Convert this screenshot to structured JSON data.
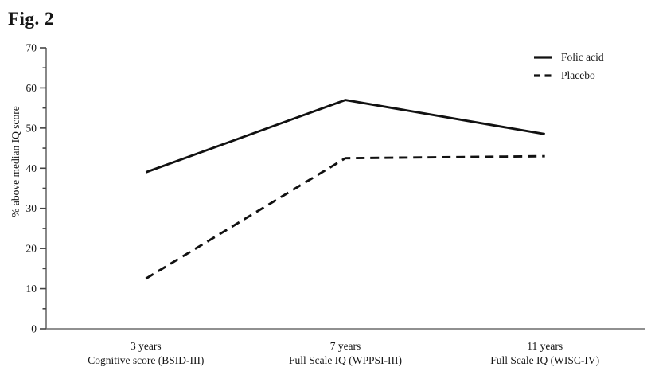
{
  "figure": {
    "title": "Fig. 2"
  },
  "chart_data": {
    "type": "line",
    "title": "Fig. 2",
    "xlabel": "",
    "ylabel": "% above median IQ score",
    "ylim": [
      0,
      70
    ],
    "ytick_step": 10,
    "yminor_step": 5,
    "grid": false,
    "legend_position": "top-right",
    "background_color": "#ffffff",
    "line_color": "#111111",
    "axis_color": "#6b6b6b",
    "tick_color": "#444444",
    "categories": [
      {
        "label": "3 years",
        "sublabel": "Cognitive score (BSID-III)"
      },
      {
        "label": "7 years",
        "sublabel": "Full Scale IQ (WPPSI-III)"
      },
      {
        "label": "11 years",
        "sublabel": "Full Scale IQ (WISC-IV)"
      }
    ],
    "series": [
      {
        "name": "Folic acid",
        "line_style": "solid",
        "values": [
          39,
          57,
          48.5
        ]
      },
      {
        "name": "Placebo",
        "line_style": "dashed",
        "values": [
          12.5,
          42.5,
          43
        ]
      }
    ]
  }
}
